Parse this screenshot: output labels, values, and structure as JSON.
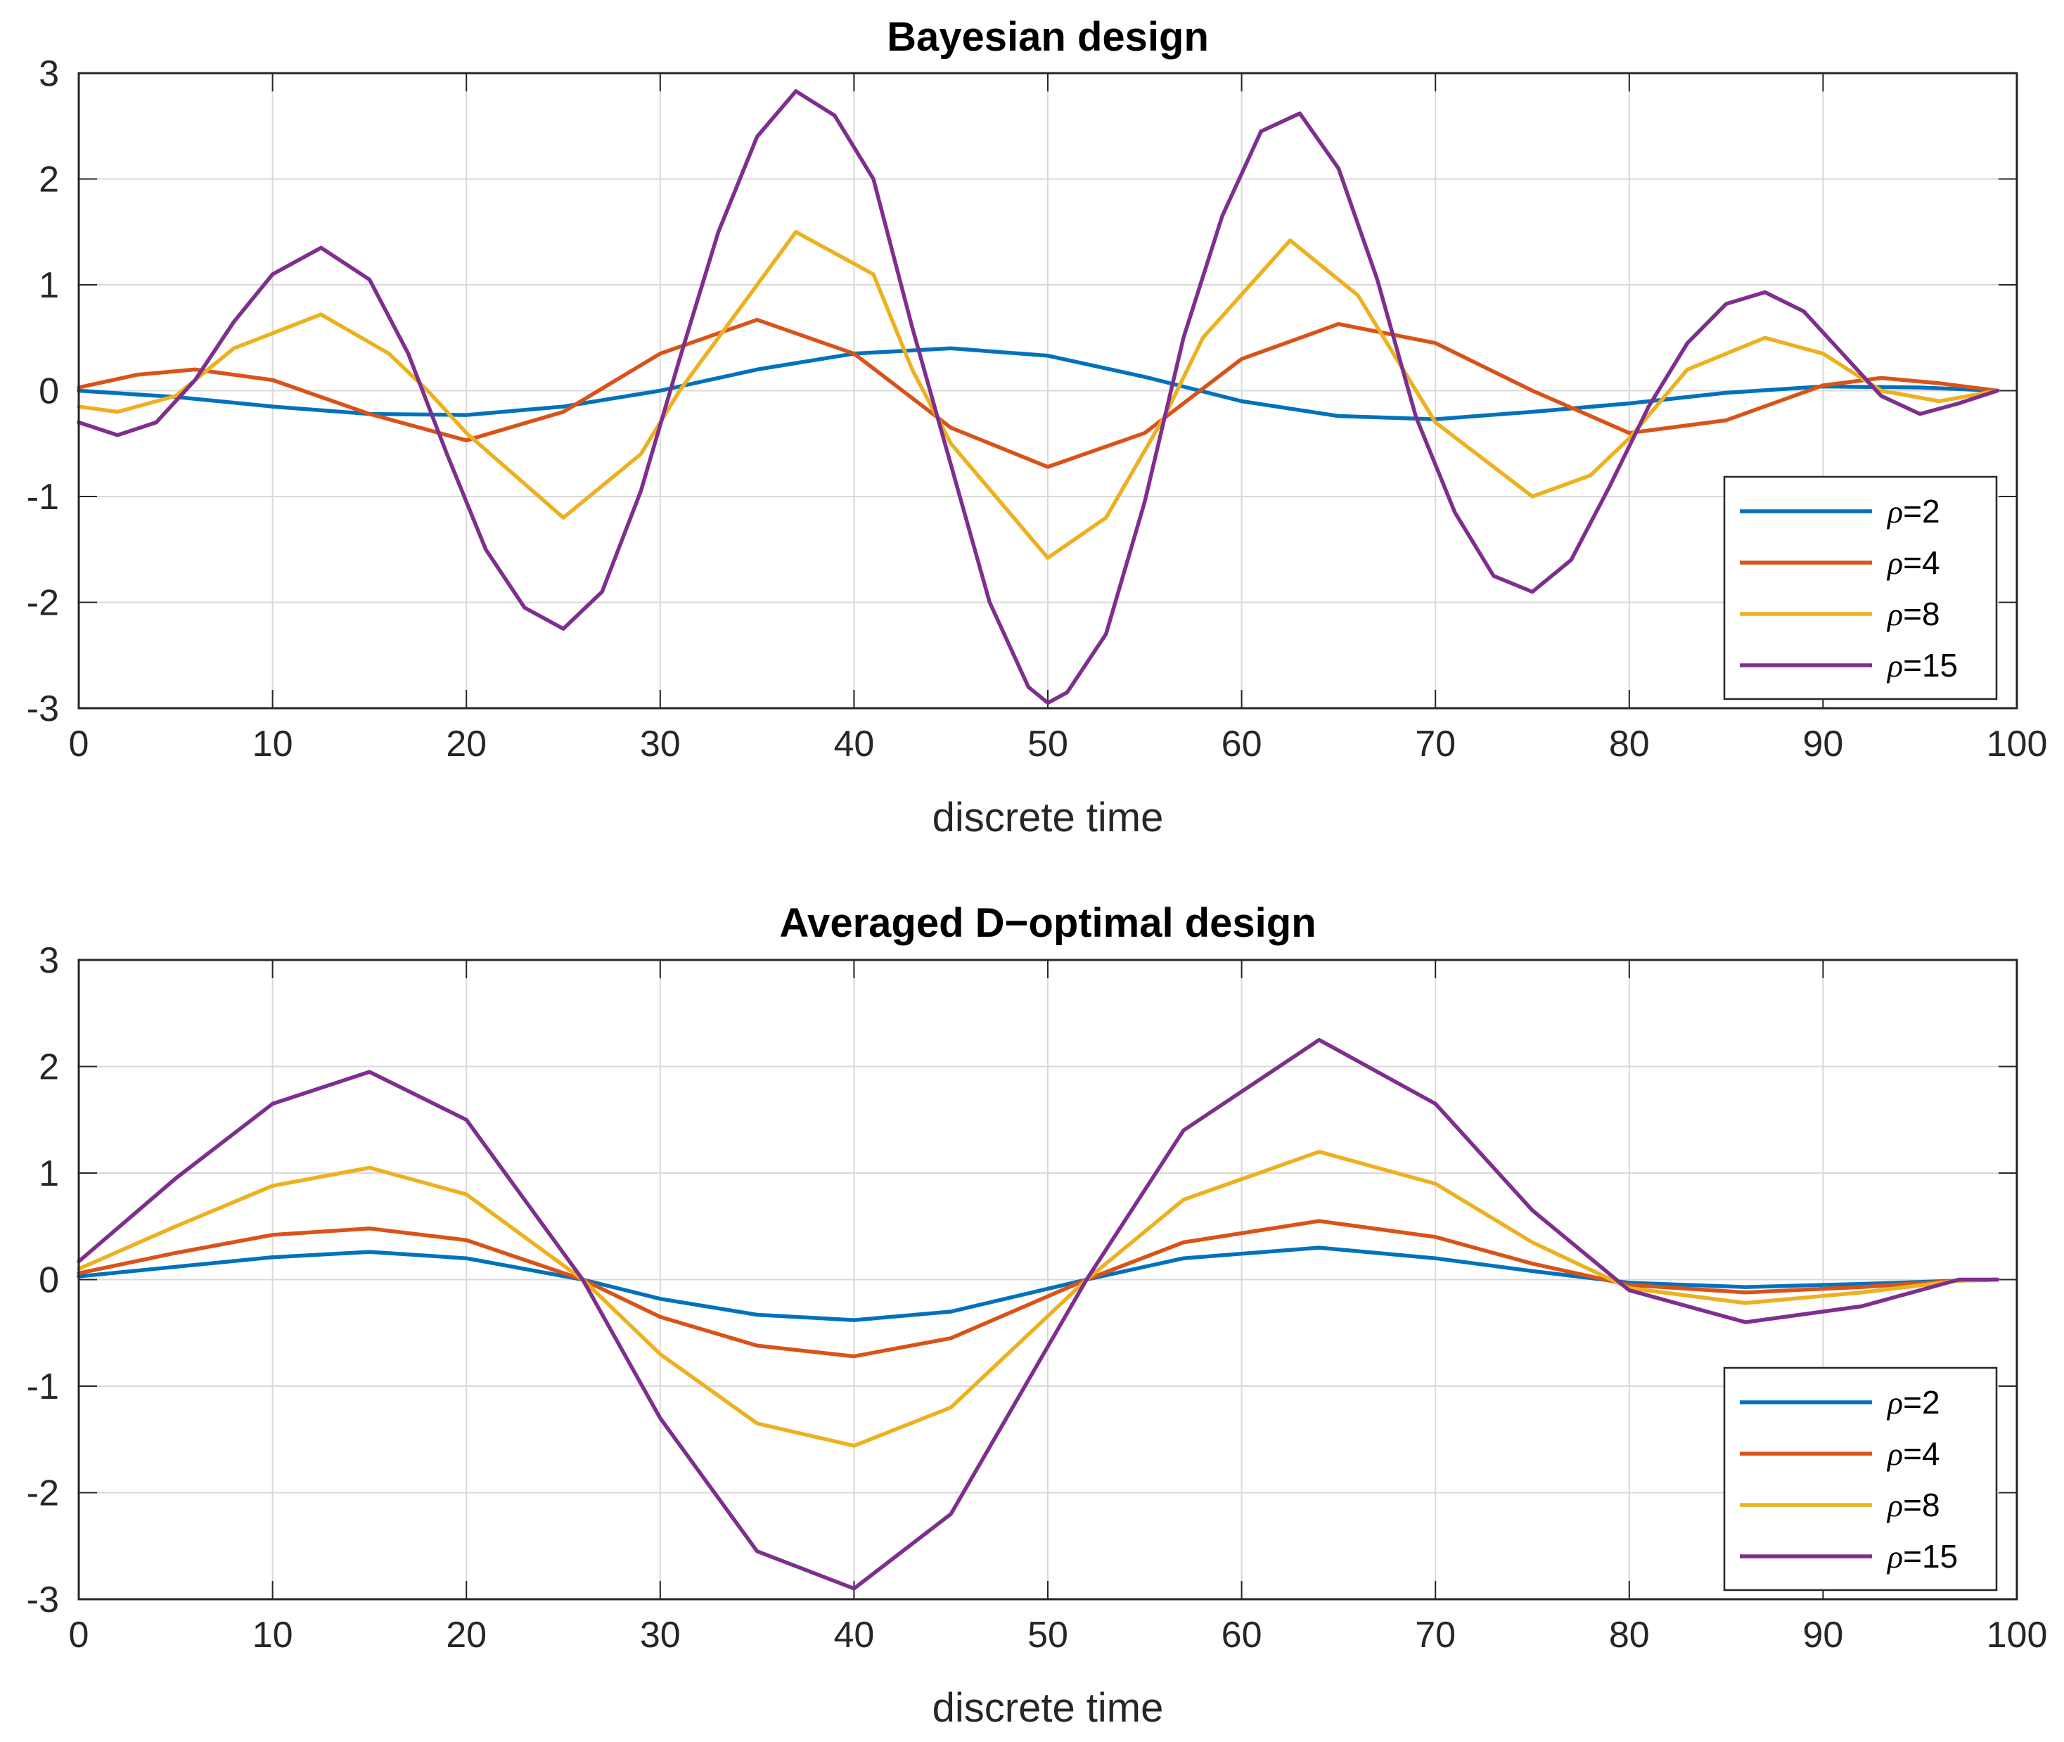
{
  "chart_data": [
    {
      "type": "line",
      "title": "Bayesian design",
      "xlabel": "discrete time",
      "ylabel": "",
      "xlim": [
        0,
        100
      ],
      "ylim": [
        -3,
        3
      ],
      "xticks": [
        "0",
        "10",
        "20",
        "30",
        "40",
        "50",
        "60",
        "70",
        "80",
        "90",
        "100"
      ],
      "yticks": [
        "3",
        "2",
        "1",
        "0",
        "-1",
        "-2",
        "-3"
      ],
      "grid": true,
      "legend_position": "bottom-right",
      "series": [
        {
          "name": "ρ=2",
          "label_sym": "ρ",
          "label_val": "=2",
          "color": "#0072BD",
          "x": [
            0,
            5,
            10,
            15,
            20,
            25,
            30,
            35,
            40,
            45,
            50,
            55,
            60,
            65,
            70,
            75,
            80,
            85,
            90,
            95,
            99
          ],
          "y": [
            0.0,
            -0.06,
            -0.15,
            -0.22,
            -0.23,
            -0.15,
            0.0,
            0.2,
            0.35,
            0.4,
            0.33,
            0.13,
            -0.1,
            -0.24,
            -0.27,
            -0.2,
            -0.12,
            -0.02,
            0.04,
            0.03,
            0.0
          ]
        },
        {
          "name": "ρ=4",
          "label_sym": "ρ",
          "label_val": "=4",
          "color": "#D95319",
          "x": [
            0,
            3,
            6,
            10,
            15,
            20,
            25,
            30,
            35,
            40,
            45,
            50,
            55,
            60,
            65,
            70,
            75,
            80,
            85,
            90,
            93,
            96,
            99
          ],
          "y": [
            0.03,
            0.15,
            0.2,
            0.1,
            -0.22,
            -0.47,
            -0.2,
            0.35,
            0.67,
            0.35,
            -0.35,
            -0.72,
            -0.4,
            0.3,
            0.63,
            0.45,
            0.0,
            -0.4,
            -0.28,
            0.05,
            0.12,
            0.07,
            0.0
          ]
        },
        {
          "name": "ρ=8",
          "label_sym": "ρ",
          "label_val": "=8",
          "color": "#EDB120",
          "x": [
            0,
            2,
            5,
            8,
            12.5,
            16,
            18,
            20,
            25,
            29,
            31,
            37,
            41,
            43,
            45,
            50,
            53,
            56,
            58,
            62.5,
            66,
            68,
            70,
            75,
            78,
            80,
            83,
            87,
            90,
            93,
            96,
            99
          ],
          "y": [
            -0.15,
            -0.2,
            -0.05,
            0.4,
            0.72,
            0.35,
            0.0,
            -0.4,
            -1.2,
            -0.6,
            0.0,
            1.5,
            1.1,
            0.2,
            -0.5,
            -1.58,
            -1.2,
            -0.25,
            0.5,
            1.42,
            0.9,
            0.3,
            -0.3,
            -1.0,
            -0.8,
            -0.45,
            0.2,
            0.5,
            0.35,
            0.0,
            -0.1,
            0.0
          ]
        },
        {
          "name": "ρ=15",
          "label_sym": "ρ",
          "label_val": "=15",
          "color": "#7E2F8E",
          "x": [
            0,
            2,
            4,
            6,
            8,
            10,
            12.5,
            15,
            17,
            19,
            21,
            23,
            25,
            27,
            29,
            31,
            33,
            35,
            37,
            39,
            41,
            43,
            45,
            47,
            49,
            50,
            51,
            53,
            55,
            57,
            59,
            61,
            63,
            65,
            67,
            69,
            71,
            73,
            75,
            77,
            79,
            81,
            83,
            85,
            87,
            89,
            91,
            93,
            95,
            97,
            99
          ],
          "y": [
            -0.3,
            -0.42,
            -0.3,
            0.1,
            0.65,
            1.1,
            1.35,
            1.05,
            0.35,
            -0.6,
            -1.5,
            -2.05,
            -2.25,
            -1.9,
            -0.95,
            0.3,
            1.5,
            2.4,
            2.83,
            2.6,
            2.0,
            0.6,
            -0.7,
            -2.0,
            -2.8,
            -2.95,
            -2.85,
            -2.3,
            -1.05,
            0.5,
            1.65,
            2.45,
            2.62,
            2.1,
            1.05,
            -0.25,
            -1.15,
            -1.75,
            -1.9,
            -1.6,
            -0.9,
            -0.15,
            0.45,
            0.82,
            0.93,
            0.75,
            0.35,
            -0.05,
            -0.22,
            -0.12,
            0.0
          ]
        }
      ]
    },
    {
      "type": "line",
      "title": "Averaged D−optimal design",
      "xlabel": "discrete time",
      "ylabel": "",
      "xlim": [
        0,
        100
      ],
      "ylim": [
        -3,
        3
      ],
      "xticks": [
        "0",
        "10",
        "20",
        "30",
        "40",
        "50",
        "60",
        "70",
        "80",
        "90",
        "100"
      ],
      "yticks": [
        "3",
        "2",
        "1",
        "0",
        "-1",
        "-2",
        "-3"
      ],
      "grid": true,
      "legend_position": "bottom-right",
      "series": [
        {
          "name": "ρ=2",
          "label_sym": "ρ",
          "label_val": "=2",
          "color": "#0072BD",
          "x": [
            0,
            5,
            10,
            15,
            20,
            26,
            30,
            35,
            40,
            45,
            52,
            57,
            64,
            70,
            75,
            80,
            86,
            92,
            97,
            99
          ],
          "y": [
            0.03,
            0.12,
            0.21,
            0.26,
            0.2,
            0.0,
            -0.18,
            -0.33,
            -0.38,
            -0.3,
            0.0,
            0.2,
            0.3,
            0.2,
            0.08,
            -0.03,
            -0.07,
            -0.04,
            -0.01,
            0.0
          ]
        },
        {
          "name": "ρ=4",
          "label_sym": "ρ",
          "label_val": "=4",
          "color": "#D95319",
          "x": [
            0,
            5,
            10,
            15,
            20,
            26,
            30,
            35,
            40,
            45,
            52,
            57,
            64,
            70,
            75,
            80,
            86,
            92,
            97,
            99
          ],
          "y": [
            0.06,
            0.25,
            0.42,
            0.48,
            0.37,
            0.0,
            -0.35,
            -0.62,
            -0.72,
            -0.55,
            0.0,
            0.35,
            0.55,
            0.4,
            0.15,
            -0.05,
            -0.12,
            -0.07,
            -0.01,
            0.0
          ]
        },
        {
          "name": "ρ=8",
          "label_sym": "ρ",
          "label_val": "=8",
          "color": "#EDB120",
          "x": [
            0,
            5,
            10,
            15,
            20,
            26,
            30,
            35,
            40,
            45,
            52,
            57,
            64,
            70,
            75,
            80,
            86,
            92,
            97,
            99
          ],
          "y": [
            0.1,
            0.5,
            0.88,
            1.05,
            0.8,
            0.0,
            -0.7,
            -1.35,
            -1.56,
            -1.2,
            0.0,
            0.75,
            1.2,
            0.9,
            0.35,
            -0.08,
            -0.22,
            -0.12,
            -0.01,
            0.0
          ]
        },
        {
          "name": "ρ=15",
          "label_sym": "ρ",
          "label_val": "=15",
          "color": "#7E2F8E",
          "x": [
            0,
            5,
            10,
            15,
            20,
            26,
            30,
            35,
            40,
            45,
            52,
            57,
            64,
            70,
            75,
            80,
            86,
            92,
            97,
            99
          ],
          "y": [
            0.17,
            0.95,
            1.65,
            1.95,
            1.5,
            0.0,
            -1.3,
            -2.55,
            -2.9,
            -2.2,
            0.0,
            1.4,
            2.25,
            1.65,
            0.65,
            -0.1,
            -0.4,
            -0.25,
            0.0,
            0.0
          ]
        }
      ]
    }
  ]
}
